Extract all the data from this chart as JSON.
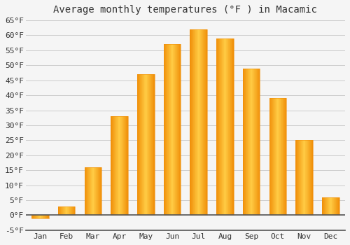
{
  "title": "Average monthly temperatures (°F ) in Macamic",
  "months": [
    "Jan",
    "Feb",
    "Mar",
    "Apr",
    "May",
    "Jun",
    "Jul",
    "Aug",
    "Sep",
    "Oct",
    "Nov",
    "Dec"
  ],
  "values": [
    -1,
    3,
    16,
    33,
    47,
    57,
    62,
    59,
    49,
    39,
    25,
    6
  ],
  "bar_color_center": "#FFCC44",
  "bar_color_edge": "#F0900A",
  "ylim": [
    -5,
    65
  ],
  "yticks": [
    -5,
    0,
    5,
    10,
    15,
    20,
    25,
    30,
    35,
    40,
    45,
    50,
    55,
    60,
    65
  ],
  "ytick_labels": [
    "-5°F",
    "0°F",
    "5°F",
    "10°F",
    "15°F",
    "20°F",
    "25°F",
    "30°F",
    "35°F",
    "40°F",
    "45°F",
    "50°F",
    "55°F",
    "60°F",
    "65°F"
  ],
  "bg_color": "#F5F5F5",
  "grid_color": "#CCCCCC",
  "font_color": "#333333",
  "title_fontsize": 10,
  "tick_fontsize": 8,
  "bar_width": 0.65,
  "n_gradient_strips": 40
}
